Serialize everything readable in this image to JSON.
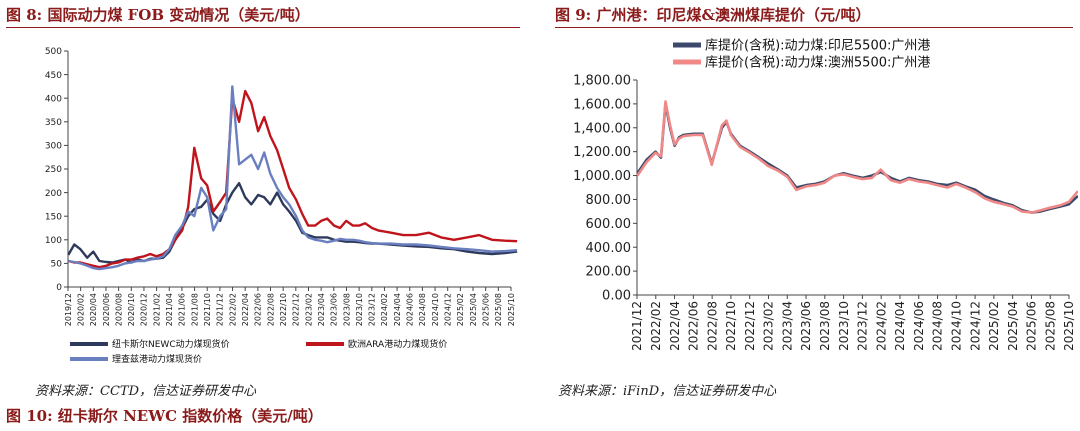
{
  "figures": [
    {
      "number_label": "图 8:",
      "title": "国际动力煤 FOB 变动情况（美元/吨）",
      "source": "资料来源：CCTD，信达证券研发中心"
    },
    {
      "number_label": "图 9:",
      "title": "广州港：印尼煤&澳洲煤库提价（元/吨）",
      "source": "资料来源：iFinD，信达证券研发中心"
    },
    {
      "number_label": "图 10:",
      "title": "纽卡斯尔 NEWC 指数价格（美元/吨）"
    }
  ],
  "colors": {
    "title": "#8b1a1a",
    "newc": "#2e3a5c",
    "ara": "#c0141c",
    "rb": "#6a7fc0",
    "indo": "#3b4a6b",
    "aus": "#f08888"
  },
  "chart_data": [
    {
      "type": "line",
      "title": "",
      "xlabel": "",
      "ylabel": "",
      "ylim": [
        0,
        500
      ],
      "yticks": [
        "0",
        "50",
        "100",
        "150",
        "200",
        "250",
        "300",
        "350",
        "400",
        "450",
        "500"
      ],
      "xticks": [
        "2019/12",
        "2020/02",
        "2020/04",
        "2020/06",
        "2020/08",
        "2020/10",
        "2020/12",
        "2021/02",
        "2021/04",
        "2021/06",
        "2021/08",
        "2021/10",
        "2021/12",
        "2022/02",
        "2022/04",
        "2022/06",
        "2022/08",
        "2022/10",
        "2022/12",
        "2023/02",
        "2023/04",
        "2023/06",
        "2023/08",
        "2023/10",
        "2023/12",
        "2024/02",
        "2024/04",
        "2024/06",
        "2024/08",
        "2024/10",
        "2024/12",
        "2025/02",
        "2025/04",
        "2025/06",
        "2025/08",
        "2025/10"
      ],
      "grid": false,
      "legend_position": "bottom",
      "series": [
        {
          "name": "纽卡斯尔NEWC动力煤现货价",
          "x": [
            2019.92,
            2020.0,
            2020.08,
            2020.17,
            2020.25,
            2020.33,
            2020.42,
            2020.5,
            2020.58,
            2020.67,
            2020.75,
            2020.83,
            2020.92,
            2021.0,
            2021.08,
            2021.17,
            2021.25,
            2021.33,
            2021.42,
            2021.5,
            2021.58,
            2021.67,
            2021.75,
            2021.83,
            2021.92,
            2022.0,
            2022.08,
            2022.17,
            2022.25,
            2022.33,
            2022.42,
            2022.5,
            2022.58,
            2022.67,
            2022.75,
            2022.83,
            2022.92,
            2023.0,
            2023.08,
            2023.17,
            2023.25,
            2023.33,
            2023.42,
            2023.5,
            2023.58,
            2023.67,
            2023.75,
            2023.83,
            2023.92,
            2024.0,
            2024.17,
            2024.33,
            2024.5,
            2024.67,
            2024.83,
            2025.0,
            2025.17,
            2025.33,
            2025.5,
            2025.67,
            2025.83
          ],
          "y": [
            68,
            90,
            80,
            62,
            75,
            55,
            53,
            52,
            55,
            58,
            52,
            58,
            55,
            60,
            60,
            62,
            75,
            100,
            125,
            150,
            165,
            170,
            185,
            155,
            140,
            175,
            200,
            220,
            190,
            175,
            195,
            190,
            175,
            200,
            175,
            160,
            140,
            115,
            110,
            105,
            105,
            105,
            100,
            98,
            96,
            96,
            95,
            93,
            92,
            92,
            90,
            88,
            86,
            85,
            82,
            80,
            75,
            72,
            70,
            72,
            75
          ]
        },
        {
          "name": "欧洲ARA港动力煤现货价",
          "x": [
            2019.92,
            2020.0,
            2020.08,
            2020.17,
            2020.25,
            2020.33,
            2020.42,
            2020.5,
            2020.58,
            2020.67,
            2020.75,
            2020.83,
            2020.92,
            2021.0,
            2021.08,
            2021.17,
            2021.25,
            2021.33,
            2021.42,
            2021.5,
            2021.58,
            2021.67,
            2021.75,
            2021.83,
            2021.92,
            2022.0,
            2022.08,
            2022.17,
            2022.25,
            2022.33,
            2022.42,
            2022.5,
            2022.58,
            2022.67,
            2022.75,
            2022.83,
            2022.92,
            2023.0,
            2023.08,
            2023.17,
            2023.25,
            2023.33,
            2023.42,
            2023.5,
            2023.58,
            2023.67,
            2023.75,
            2023.83,
            2023.92,
            2024.0,
            2024.17,
            2024.33,
            2024.5,
            2024.67,
            2024.83,
            2025.0,
            2025.17,
            2025.33,
            2025.5,
            2025.67,
            2025.83
          ],
          "y": [
            55,
            52,
            52,
            48,
            45,
            42,
            45,
            50,
            52,
            58,
            58,
            62,
            65,
            70,
            65,
            70,
            80,
            100,
            120,
            170,
            295,
            230,
            215,
            160,
            180,
            200,
            400,
            350,
            415,
            390,
            330,
            360,
            320,
            290,
            250,
            210,
            185,
            155,
            130,
            130,
            140,
            145,
            130,
            125,
            140,
            130,
            130,
            135,
            125,
            120,
            115,
            110,
            110,
            115,
            105,
            100,
            105,
            110,
            100,
            98,
            97
          ]
        },
        {
          "name": "理查兹港动力煤现货价",
          "x": [
            2019.92,
            2020.0,
            2020.08,
            2020.17,
            2020.25,
            2020.33,
            2020.42,
            2020.5,
            2020.58,
            2020.67,
            2020.75,
            2020.83,
            2020.92,
            2021.0,
            2021.08,
            2021.17,
            2021.25,
            2021.33,
            2021.42,
            2021.5,
            2021.58,
            2021.67,
            2021.75,
            2021.83,
            2021.92,
            2022.0,
            2022.08,
            2022.17,
            2022.25,
            2022.33,
            2022.42,
            2022.5,
            2022.58,
            2022.67,
            2022.75,
            2022.83,
            2022.92,
            2023.0,
            2023.08,
            2023.17,
            2023.25,
            2023.33,
            2023.42,
            2023.5,
            2023.58,
            2023.67,
            2023.75,
            2023.83,
            2023.92,
            2024.0,
            2024.17,
            2024.33,
            2024.5,
            2024.67,
            2024.83,
            2025.0,
            2025.17,
            2025.33,
            2025.5,
            2025.67,
            2025.83
          ],
          "y": [
            55,
            53,
            50,
            45,
            40,
            38,
            40,
            42,
            45,
            50,
            52,
            55,
            55,
            58,
            60,
            65,
            80,
            110,
            130,
            160,
            150,
            210,
            190,
            120,
            150,
            165,
            425,
            260,
            270,
            280,
            250,
            285,
            240,
            210,
            190,
            175,
            150,
            120,
            105,
            100,
            98,
            95,
            98,
            102,
            100,
            100,
            98,
            95,
            93,
            92,
            92,
            90,
            90,
            88,
            85,
            82,
            80,
            78,
            75,
            76,
            78
          ]
        }
      ]
    },
    {
      "type": "line",
      "title": "",
      "xlabel": "",
      "ylabel": "",
      "ylim": [
        0,
        1800
      ],
      "yticks": [
        "0.00",
        "200.00",
        "400.00",
        "600.00",
        "800.00",
        "1,000.00",
        "1,200.00",
        "1,400.00",
        "1,600.00",
        "1,800.00"
      ],
      "xticks": [
        "2021/12",
        "2022/02",
        "2022/04",
        "2022/06",
        "2022/08",
        "2022/10",
        "2022/12",
        "2023/02",
        "2023/04",
        "2023/06",
        "2023/08",
        "2023/10",
        "2023/12",
        "2024/02",
        "2024/04",
        "2024/06",
        "2024/08",
        "2024/10",
        "2024/12",
        "2025/02",
        "2025/04",
        "2025/06",
        "2025/08",
        "2025/10"
      ],
      "grid": false,
      "legend_position": "top-left",
      "series": [
        {
          "name": "库提价(含税):动力煤:印尼5500:广州港",
          "x": [
            2021.92,
            2022.0,
            2022.08,
            2022.13,
            2022.17,
            2022.21,
            2022.25,
            2022.29,
            2022.33,
            2022.42,
            2022.5,
            2022.58,
            2022.67,
            2022.71,
            2022.75,
            2022.83,
            2022.92,
            2023.0,
            2023.08,
            2023.17,
            2023.25,
            2023.33,
            2023.42,
            2023.5,
            2023.58,
            2023.67,
            2023.75,
            2023.83,
            2023.92,
            2024.0,
            2024.08,
            2024.17,
            2024.25,
            2024.33,
            2024.42,
            2024.5,
            2024.58,
            2024.67,
            2024.75,
            2024.83,
            2024.92,
            2025.0,
            2025.08,
            2025.17,
            2025.25,
            2025.33,
            2025.42,
            2025.5,
            2025.58,
            2025.67,
            2025.75,
            2025.83
          ],
          "y": [
            1020,
            1130,
            1200,
            1150,
            1600,
            1400,
            1250,
            1320,
            1340,
            1350,
            1350,
            1100,
            1400,
            1450,
            1350,
            1250,
            1200,
            1150,
            1100,
            1050,
            1000,
            900,
            920,
            930,
            950,
            1000,
            1020,
            1000,
            980,
            1000,
            1030,
            980,
            950,
            980,
            960,
            950,
            930,
            920,
            940,
            910,
            880,
            830,
            800,
            770,
            750,
            710,
            690,
            700,
            720,
            740,
            760,
            830
          ]
        },
        {
          "name": "库提价(含税):动力煤:澳洲5500:广州港",
          "x": [
            2021.92,
            2022.0,
            2022.08,
            2022.13,
            2022.17,
            2022.21,
            2022.25,
            2022.29,
            2022.33,
            2022.42,
            2022.5,
            2022.58,
            2022.67,
            2022.71,
            2022.75,
            2022.83,
            2022.92,
            2023.0,
            2023.08,
            2023.17,
            2023.25,
            2023.33,
            2023.42,
            2023.5,
            2023.58,
            2023.67,
            2023.75,
            2023.83,
            2023.92,
            2024.0,
            2024.08,
            2024.17,
            2024.25,
            2024.33,
            2024.42,
            2024.5,
            2024.58,
            2024.67,
            2024.75,
            2024.83,
            2024.92,
            2025.0,
            2025.08,
            2025.17,
            2025.25,
            2025.33,
            2025.42,
            2025.5,
            2025.58,
            2025.67,
            2025.75,
            2025.83
          ],
          "y": [
            1000,
            1110,
            1190,
            1160,
            1620,
            1420,
            1260,
            1310,
            1330,
            1340,
            1340,
            1090,
            1420,
            1460,
            1340,
            1240,
            1190,
            1140,
            1080,
            1040,
            990,
            880,
            910,
            920,
            940,
            1000,
            1010,
            990,
            970,
            980,
            1050,
            960,
            940,
            970,
            950,
            940,
            920,
            900,
            930,
            900,
            860,
            810,
            780,
            760,
            740,
            700,
            690,
            710,
            730,
            750,
            780,
            870
          ]
        }
      ]
    }
  ]
}
